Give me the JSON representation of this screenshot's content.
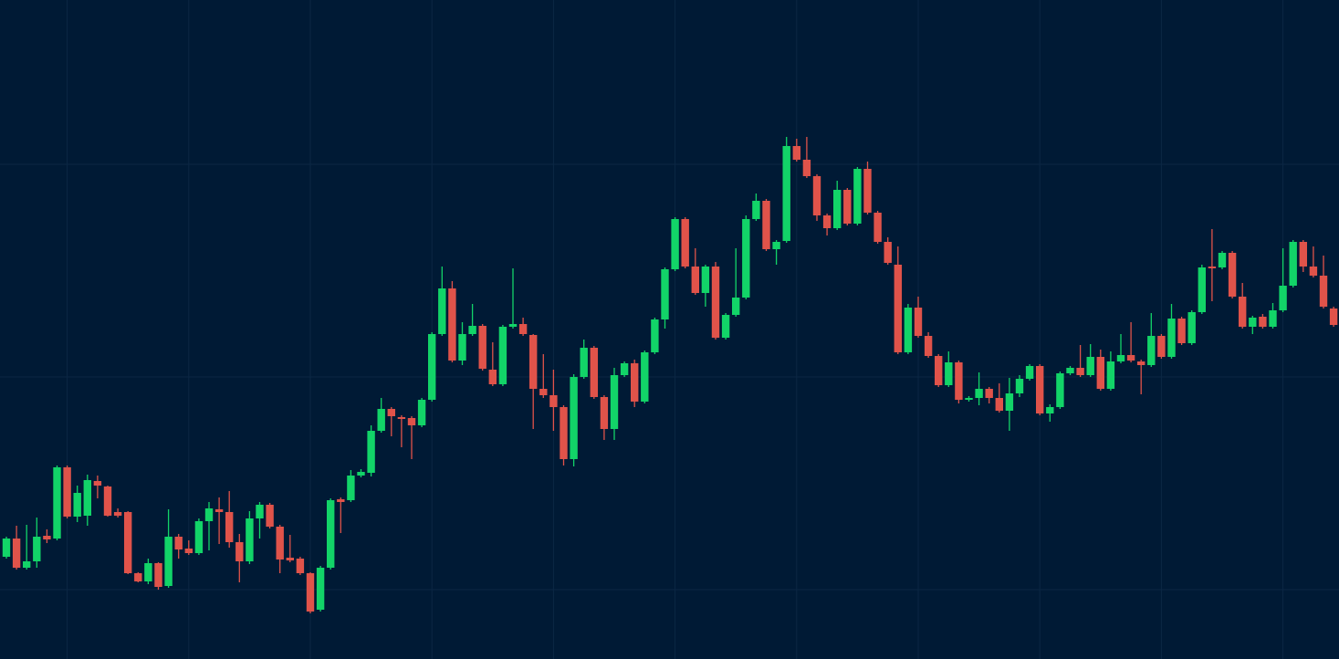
{
  "chart_data": {
    "type": "candlestick",
    "up_color": "#12d468",
    "down_color": "#e0534a",
    "grid_color": "#0b2744",
    "background": "#001a35",
    "ylim": [
      0,
      722
    ],
    "yticks": [
      76,
      309,
      542
    ],
    "xticks": [
      6,
      18,
      30,
      42,
      54,
      66,
      78,
      90,
      102,
      114,
      126
    ],
    "grid": true,
    "open": [
      112,
      132,
      100,
      107,
      135,
      132,
      210,
      156,
      157,
      195,
      189,
      161,
      161,
      94,
      85,
      105,
      80,
      134,
      121,
      116,
      151,
      164,
      161,
      128,
      107,
      154,
      169,
      145,
      111,
      110,
      94,
      54,
      100,
      175,
      174,
      201,
      204,
      250,
      274,
      265,
      264,
      256,
      284,
      356,
      406,
      327,
      356,
      365,
      317,
      301,
      364,
      367,
      355,
      296,
      289,
      276,
      219,
      309,
      341,
      287,
      252,
      311,
      324,
      282,
      336,
      372,
      427,
      482,
      430,
      401,
      430,
      352,
      377,
      396,
      482,
      502,
      449,
      458,
      562,
      547,
      529,
      486,
      472,
      514,
      477,
      537,
      489,
      457,
      432,
      336,
      385,
      354,
      332,
      300,
      325,
      284,
      286,
      296,
      286,
      272,
      291,
      307,
      321,
      269,
      276,
      313,
      319,
      311,
      331,
      296,
      326,
      333,
      326,
      322,
      354,
      331,
      373,
      346,
      380,
      430,
      429,
      445,
      397,
      364,
      375,
      364,
      382,
      409,
      457,
      430,
      420,
      384
    ],
    "high": [
      134,
      146,
      147,
      155,
      142,
      212,
      212,
      190,
      202,
      201,
      190,
      165,
      162,
      95,
      110,
      106,
      164,
      137,
      130,
      154,
      172,
      177,
      184,
      137,
      162,
      172,
      171,
      147,
      136,
      112,
      95,
      102,
      176,
      177,
      207,
      208,
      256,
      286,
      276,
      267,
      266,
      286,
      358,
      430,
      414,
      369,
      389,
      367,
      347,
      366,
      428,
      374,
      356,
      334,
      317,
      278,
      312,
      350,
      343,
      289,
      319,
      326,
      328,
      338,
      374,
      429,
      484,
      484,
      450,
      432,
      435,
      379,
      450,
      486,
      510,
      504,
      459,
      572,
      570,
      572,
      531,
      488,
      524,
      516,
      539,
      545,
      491,
      462,
      452,
      389,
      397,
      358,
      334,
      337,
      327,
      288,
      314,
      298,
      302,
      308,
      311,
      323,
      323,
      279,
      315,
      321,
      344,
      345,
      339,
      337,
      356,
      369,
      328,
      379,
      356,
      389,
      375,
      382,
      432,
      471,
      447,
      447,
      412,
      376,
      378,
      390,
      450,
      459,
      459,
      452,
      442,
      386
    ],
    "low": [
      110,
      98,
      98,
      100,
      127,
      130,
      154,
      150,
      146,
      176,
      156,
      155,
      93,
      84,
      82,
      76,
      78,
      110,
      114,
      114,
      119,
      126,
      122,
      84,
      104,
      132,
      143,
      94,
      106,
      92,
      50,
      52,
      98,
      138,
      172,
      199,
      200,
      248,
      244,
      232,
      219,
      254,
      282,
      354,
      325,
      322,
      354,
      316,
      299,
      299,
      362,
      354,
      252,
      286,
      250,
      212,
      211,
      307,
      285,
      240,
      240,
      309,
      276,
      280,
      334,
      362,
      425,
      428,
      399,
      386,
      350,
      350,
      375,
      394,
      480,
      447,
      432,
      456,
      545,
      527,
      480,
      464,
      470,
      475,
      475,
      487,
      455,
      432,
      334,
      334,
      352,
      330,
      298,
      298,
      280,
      282,
      278,
      280,
      270,
      250,
      287,
      305,
      267,
      260,
      274,
      311,
      309,
      309,
      294,
      294,
      324,
      325,
      290,
      320,
      329,
      329,
      344,
      344,
      378,
      392,
      427,
      395,
      362,
      356,
      362,
      362,
      380,
      407,
      424,
      418,
      384,
      364
    ],
    "close": [
      132,
      100,
      107,
      134,
      131,
      210,
      156,
      182,
      196,
      190,
      157,
      157,
      94,
      85,
      105,
      79,
      134,
      120,
      116,
      151,
      165,
      161,
      128,
      107,
      154,
      169,
      145,
      109,
      108,
      94,
      52,
      100,
      174,
      172,
      201,
      205,
      250,
      274,
      266,
      263,
      256,
      284,
      356,
      406,
      327,
      356,
      365,
      318,
      301,
      364,
      367,
      356,
      296,
      289,
      276,
      219,
      309,
      341,
      287,
      252,
      311,
      324,
      282,
      336,
      372,
      427,
      482,
      430,
      401,
      430,
      352,
      377,
      396,
      482,
      502,
      449,
      457,
      562,
      547,
      529,
      486,
      472,
      514,
      477,
      537,
      489,
      457,
      434,
      336,
      385,
      354,
      332,
      300,
      325,
      284,
      286,
      296,
      286,
      272,
      291,
      307,
      321,
      269,
      276,
      313,
      319,
      311,
      331,
      296,
      326,
      333,
      327,
      322,
      354,
      331,
      373,
      346,
      380,
      429,
      428,
      445,
      397,
      364,
      374,
      364,
      382,
      409,
      457,
      430,
      420,
      386,
      366
    ]
  }
}
